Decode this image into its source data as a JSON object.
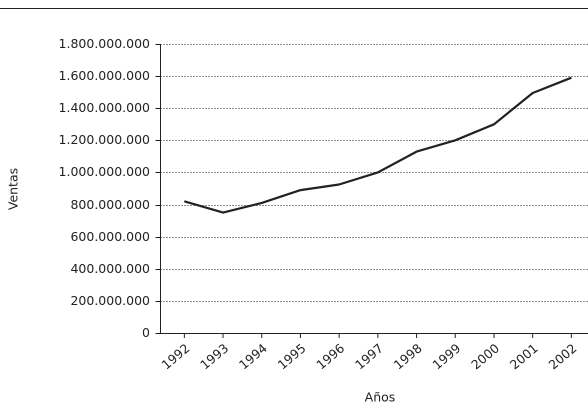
{
  "chart_data": {
    "type": "line",
    "x_label": "Años",
    "y_label": "Ventas",
    "categories": [
      "1992",
      "1993",
      "1994",
      "1995",
      "1996",
      "1997",
      "1998",
      "1999",
      "2000",
      "2001",
      "2002"
    ],
    "values": [
      820000000,
      750000000,
      810000000,
      890000000,
      925000000,
      1000000000,
      1130000000,
      1200000000,
      1300000000,
      1495000000,
      1590000000
    ],
    "color": "#222222",
    "ylim": [
      0,
      1800000000
    ],
    "yticks": [
      0,
      {
        "value": 200000000,
        "label": "200.000.000"
      },
      {
        "value": 400000000,
        "label": "400.000.000"
      },
      {
        "value": 600000000,
        "label": "600.000.000"
      },
      {
        "value": 800000000,
        "label": "800.000.000"
      },
      {
        "value": 1000000000,
        "label": "1.000.000.000"
      },
      {
        "value": 1200000000,
        "label": "1.200.000.000"
      },
      {
        "value": 1400000000,
        "label": "1.400.000.000"
      },
      {
        "value": 1600000000,
        "label": "1.600.000.000"
      },
      {
        "value": 1800000000,
        "label": "1.800.000.000"
      }
    ],
    "grid": true
  }
}
